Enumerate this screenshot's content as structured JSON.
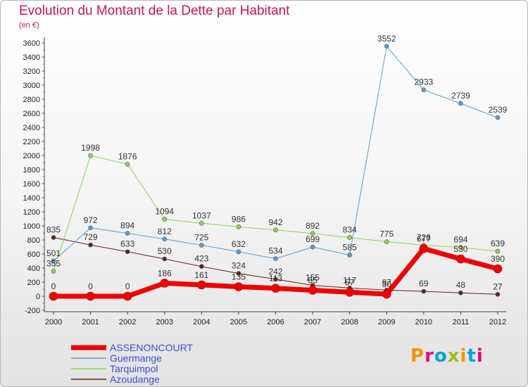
{
  "title": "Evolution du Montant de la Dette par Habitant",
  "subtitle": "(en €)",
  "logo": "Proxiti",
  "chart_data": {
    "type": "line",
    "title": "Evolution du Montant de la Dette par Habitant",
    "subtitle": "(en €)",
    "x": [
      "2000",
      "2001",
      "2002",
      "2003",
      "2004",
      "2005",
      "2006",
      "2007",
      "2008",
      "2009",
      "2010",
      "2011",
      "2012"
    ],
    "ylim": [
      -200,
      3600
    ],
    "yticks": [
      -200,
      0,
      200,
      400,
      600,
      800,
      1000,
      1200,
      1400,
      1600,
      1800,
      2000,
      2200,
      2400,
      2600,
      2800,
      3000,
      3200,
      3400,
      3600
    ],
    "grid": false,
    "legend_position": "bottom-left",
    "series": [
      {
        "name": "Azoudange",
        "color": "#6b1d1d",
        "width": 1,
        "values": [
          835,
          729,
          633,
          530,
          423,
          324,
          242,
          155,
          117,
          87,
          69,
          48,
          27
        ],
        "labels": [
          "835",
          "729",
          "633",
          "530",
          "423",
          "324",
          "242",
          "155",
          "117",
          "87",
          "69",
          "48",
          "27"
        ]
      },
      {
        "name": "Tarquimpol",
        "color": "#8fd35a",
        "width": 1,
        "values": [
          355,
          1998,
          1876,
          1094,
          1037,
          986,
          942,
          892,
          834,
          775,
          726,
          694,
          639
        ],
        "labels": [
          "355",
          "1998",
          "1876",
          "1094",
          "1037",
          "986",
          "942",
          "892",
          "834",
          "775",
          "726",
          "694",
          "639"
        ]
      },
      {
        "name": "Guermange",
        "color": "#5a9ed6",
        "width": 1,
        "values": [
          501,
          972,
          894,
          812,
          725,
          632,
          534,
          699,
          585,
          3552,
          2933,
          2739,
          2539
        ],
        "labels": [
          "501",
          "972",
          "894",
          "812",
          "725",
          "632",
          "534",
          "699",
          "585",
          "3552",
          "2933",
          "2739",
          "2539"
        ]
      },
      {
        "name": "ASSENONCOURT",
        "color": "#ee0000",
        "width": 7,
        "values": [
          0,
          0,
          0,
          186,
          161,
          135,
          113,
          85,
          57,
          30,
          677,
          530,
          390
        ],
        "labels": [
          "0",
          "0",
          "0",
          "186",
          "161",
          "135",
          "113",
          "85",
          "57",
          "30",
          "677",
          "530",
          "390"
        ]
      }
    ],
    "legend": [
      "ASSENONCOURT",
      "Guermange",
      "Tarquimpol",
      "Azoudange"
    ]
  }
}
